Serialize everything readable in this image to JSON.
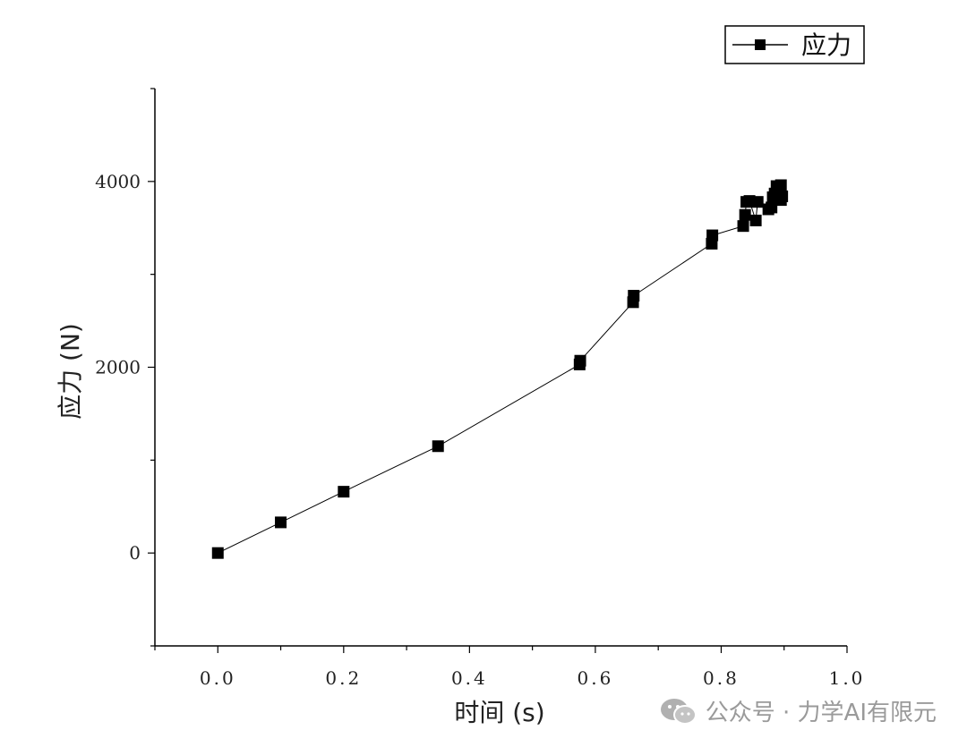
{
  "chart_data": {
    "type": "line",
    "xlabel": "时间 (s)",
    "ylabel": "应力 (N)",
    "xlim": [
      -0.1,
      1.0
    ],
    "ylim": [
      -1000,
      5000
    ],
    "x_ticks": [
      "0.0",
      "0.2",
      "0.4",
      "0.6",
      "0.8",
      "1.0"
    ],
    "y_ticks": [
      "0",
      "2000",
      "4000"
    ],
    "legend_placement": "top-right",
    "grid": false,
    "series": [
      {
        "name": "应力",
        "marker": "square",
        "color": "#000000",
        "x": [
          0.0,
          0.1,
          0.2,
          0.35,
          0.575,
          0.576,
          0.66,
          0.661,
          0.785,
          0.786,
          0.835,
          0.838,
          0.84,
          0.845,
          0.855,
          0.858,
          0.875,
          0.88,
          0.882,
          0.885,
          0.888,
          0.89,
          0.893,
          0.895,
          0.897,
          0.895,
          0.893
        ],
        "y": [
          0,
          330,
          660,
          1150,
          2030,
          2070,
          2700,
          2770,
          3330,
          3420,
          3520,
          3640,
          3780,
          3790,
          3580,
          3780,
          3700,
          3720,
          3830,
          3870,
          3950,
          3880,
          3830,
          3960,
          3840,
          3800,
          3820
        ]
      }
    ]
  },
  "watermark": {
    "text": "公众号 · 力学AI有限元",
    "icon": "wechat-icon"
  }
}
